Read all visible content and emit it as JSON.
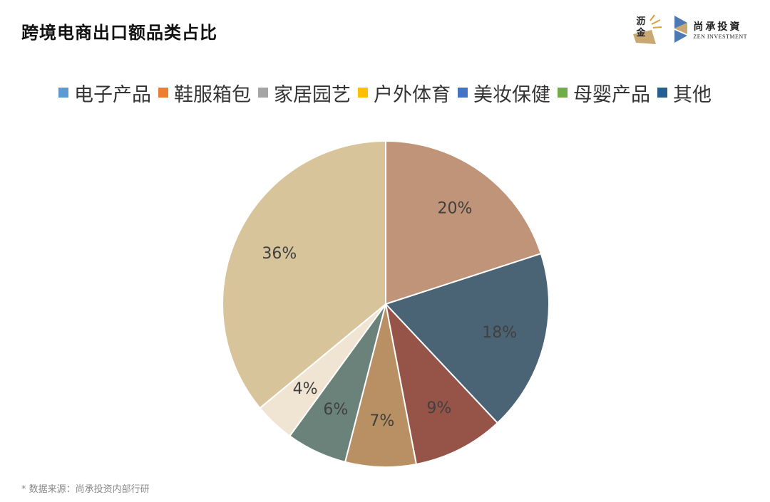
{
  "header": {
    "title": "跨境电商出口额品类占比",
    "logo_left_line1": "沥",
    "logo_left_line2": "金",
    "logo_right_cn": "尚承投資",
    "logo_right_en": "ZEN INVESTMENT"
  },
  "legend": [
    {
      "label": "电子产品",
      "color": "#5b9bd5"
    },
    {
      "label": "鞋服箱包",
      "color": "#ed7d31"
    },
    {
      "label": "家居园艺",
      "color": "#a5a5a5"
    },
    {
      "label": "户外体育",
      "color": "#ffc000"
    },
    {
      "label": "美妆保健",
      "color": "#4472c4"
    },
    {
      "label": "母婴产品",
      "color": "#70ad47"
    },
    {
      "label": "其他",
      "color": "#255e91"
    }
  ],
  "chart_data": {
    "type": "pie",
    "title": "跨境电商出口额品类占比",
    "slices": [
      {
        "value": 20,
        "label": "20%",
        "color": "#c09478"
      },
      {
        "value": 18,
        "label": "18%",
        "color": "#4b6475"
      },
      {
        "value": 9,
        "label": "9%",
        "color": "#965347"
      },
      {
        "value": 7,
        "label": "7%",
        "color": "#b89063"
      },
      {
        "value": 6,
        "label": "6%",
        "color": "#6a8279"
      },
      {
        "value": 4,
        "label": "4%",
        "color": "#f0e4d2"
      },
      {
        "value": 36,
        "label": "36%",
        "color": "#d8c49a"
      }
    ],
    "start_angle": "12 o'clock",
    "direction": "clockwise",
    "legend_placement": "top"
  },
  "footer": {
    "source": "* 数据来源：尚承投资内部行研"
  }
}
